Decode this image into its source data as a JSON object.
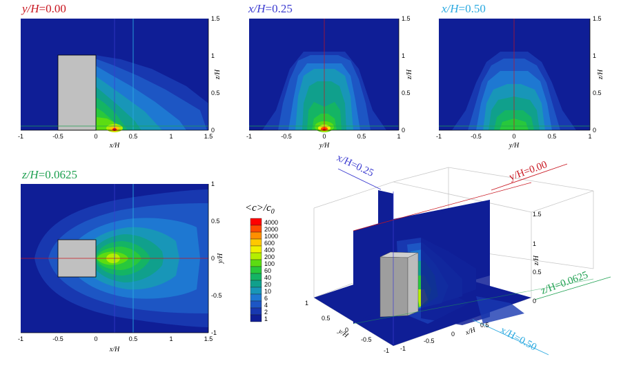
{
  "chart_data": [
    {
      "type": "heatmap",
      "title_var": "y/H",
      "title_val": "=0.00",
      "title_color": "#c8141e",
      "xlabel": "x/H",
      "ylabel": "z/H",
      "x_ticks": [
        "-1",
        "-0.5",
        "0",
        "0.5",
        "1",
        "1.5"
      ],
      "y_ticks": [
        "0",
        "0.5",
        "1",
        "1.5"
      ],
      "xlim": [
        -1,
        1.5
      ],
      "ylim": [
        0,
        1.5
      ],
      "building": {
        "x": [
          -0.5,
          0
        ],
        "z": [
          0,
          1
        ]
      },
      "marker_lines": [
        0.25,
        0.5
      ],
      "peak": {
        "x": 0.25,
        "z": 0.0,
        "value": 4000
      }
    },
    {
      "type": "heatmap",
      "title_var": "x/H",
      "title_val": "=0.25",
      "title_color": "#3b3bd0",
      "xlabel": "y/H",
      "ylabel": "z/H",
      "x_ticks": [
        "-1",
        "-0.5",
        "0",
        "0.5",
        "1"
      ],
      "y_ticks": [
        "0",
        "0.5",
        "1",
        "1.5"
      ],
      "xlim": [
        -1,
        1
      ],
      "ylim": [
        0,
        1.5
      ],
      "peak": {
        "y": 0.0,
        "z": 0.0,
        "value": 4000
      }
    },
    {
      "type": "heatmap",
      "title_var": "x/H",
      "title_val": "=0.50",
      "title_color": "#2aa9e0",
      "xlabel": "y/H",
      "ylabel": "z/H",
      "x_ticks": [
        "-1",
        "-0.5",
        "0",
        "0.5",
        "1"
      ],
      "y_ticks": [
        "0",
        "0.5",
        "1",
        "1.5"
      ],
      "xlim": [
        -1,
        1
      ],
      "ylim": [
        0,
        1.5
      ],
      "peak": {
        "y": 0.0,
        "z": 0.1,
        "value": 100
      }
    },
    {
      "type": "heatmap",
      "title_var": "z/H",
      "title_val": "=0.0625",
      "title_color": "#1ea050",
      "xlabel": "x/H",
      "ylabel": "y/H",
      "x_ticks": [
        "-1",
        "-0.5",
        "0",
        "0.5",
        "1",
        "1.5"
      ],
      "y_ticks": [
        "-1",
        "-0.5",
        "0",
        "0.5",
        "1"
      ],
      "xlim": [
        -1,
        1.5
      ],
      "ylim": [
        -1,
        1
      ],
      "building": {
        "x": [
          -0.5,
          0
        ],
        "y": [
          -0.25,
          0.25
        ]
      },
      "marker_lines": [
        0.25,
        0.5
      ],
      "peak": {
        "x": 0.25,
        "y": 0.0,
        "value": 200
      }
    }
  ],
  "legend": {
    "title": "<c>/c",
    "title_sub": "0",
    "levels": [
      "4000",
      "2000",
      "1000",
      "600",
      "400",
      "200",
      "100",
      "60",
      "40",
      "20",
      "10",
      "6",
      "4",
      "2",
      "1"
    ],
    "colors": [
      "#ff0000",
      "#ff4b00",
      "#ff8f00",
      "#ffc800",
      "#f0f000",
      "#b4ee00",
      "#5cdc12",
      "#28c83c",
      "#14b464",
      "#10a08c",
      "#1896b8",
      "#1e78d2",
      "#1d56c4",
      "#1838b0",
      "#0f1e96"
    ]
  },
  "view3d": {
    "labels": [
      "x/H=0.25",
      "y/H=0.00",
      "z/H=0.0625",
      "x/H=0.50"
    ],
    "label_colors": [
      "#3b3bd0",
      "#c8141e",
      "#1ea050",
      "#2aa9e0"
    ],
    "x_ticks": [
      "-1",
      "-0.5",
      "0",
      "0.5"
    ],
    "y_ticks": [
      "1",
      "0.5",
      "0",
      "-0.5",
      "-1"
    ],
    "z_ticks": [
      "1.5",
      "1",
      "0.5",
      "0"
    ],
    "xlabel": "x/H",
    "ylabel": "y/H",
    "zlabel": "z/H"
  }
}
